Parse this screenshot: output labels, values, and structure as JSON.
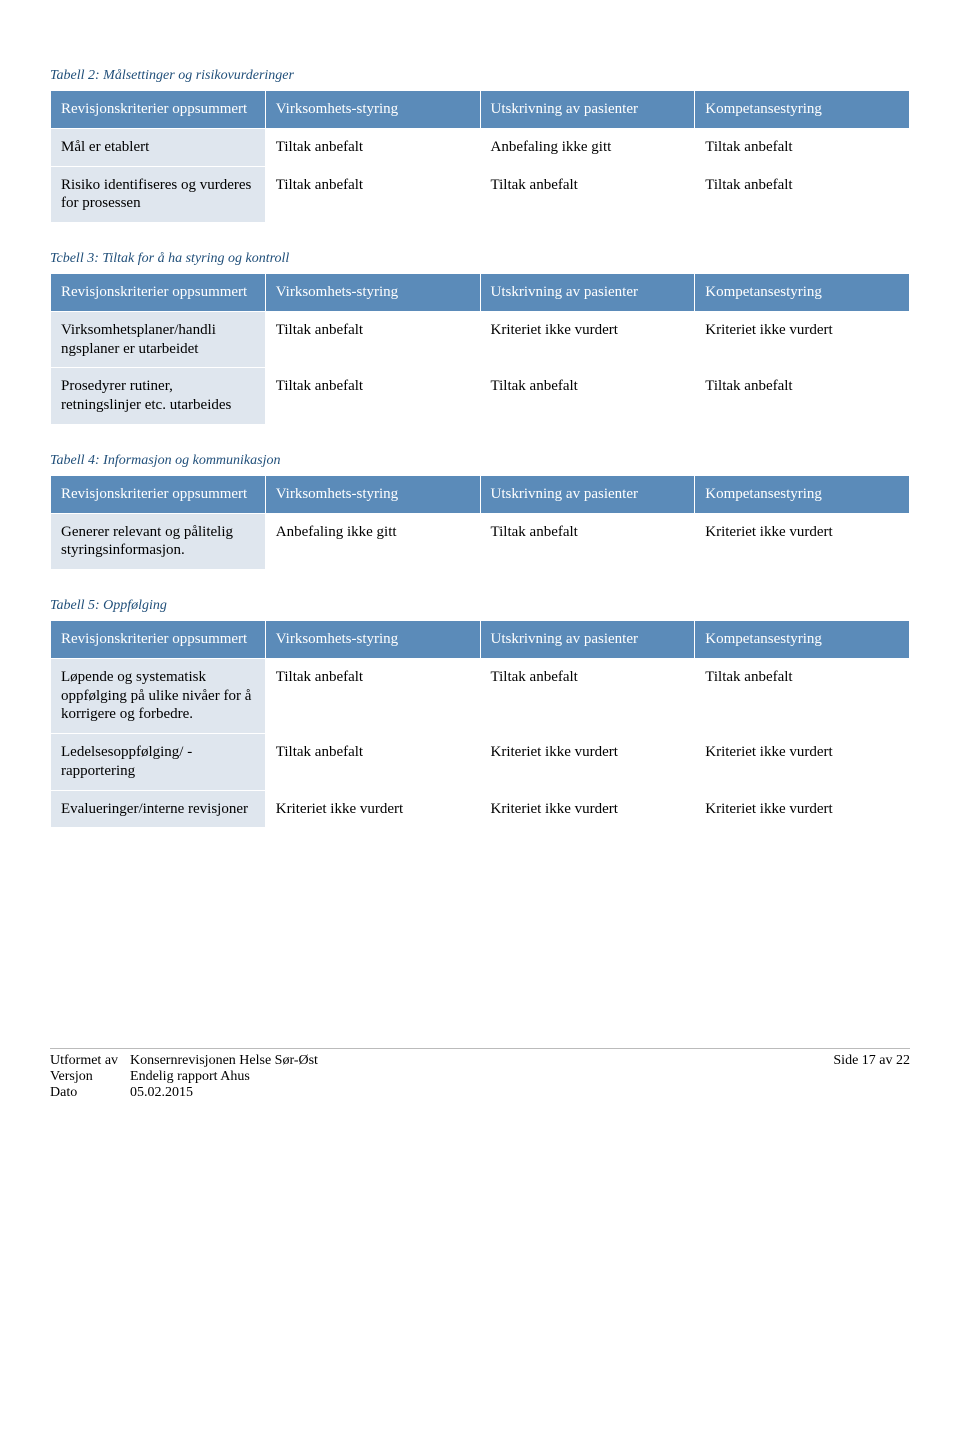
{
  "colors": {
    "header_bg": "#5b8bb9",
    "header_text": "#ffffff",
    "rowlabel_bg": "#dfe6ee",
    "caption_color": "#1f4e79",
    "cell_border": "#ffffff"
  },
  "table2": {
    "caption": "Tabell 2: Målsettinger og risikovurderinger",
    "headers": [
      "Revisjonskriterier oppsummert",
      "Virksomhets-styring",
      "Utskrivning av pasienter",
      "Kompetansestyring"
    ],
    "rows": [
      [
        "Mål er etablert",
        "Tiltak anbefalt",
        "Anbefaling ikke gitt",
        "Tiltak anbefalt"
      ],
      [
        "Risiko identifiseres og vurderes for prosessen",
        "Tiltak anbefalt",
        "Tiltak anbefalt",
        "Tiltak anbefalt"
      ]
    ]
  },
  "table3": {
    "caption": "Tcbell 3: Tiltak for å ha styring og kontroll",
    "headers": [
      "Revisjonskriterier oppsummert",
      "Virksomhets-styring",
      "Utskrivning av pasienter",
      "Kompetansestyring"
    ],
    "rows": [
      [
        "Virksomhetsplaner/handli ngsplaner er utarbeidet",
        "Tiltak anbefalt",
        "Kriteriet ikke vurdert",
        "Kriteriet ikke vurdert"
      ],
      [
        "Prosedyrer rutiner, retningslinjer etc. utarbeides",
        "Tiltak anbefalt",
        "Tiltak anbefalt",
        "Tiltak anbefalt"
      ]
    ]
  },
  "table4": {
    "caption": "Tabell 4: Informasjon og kommunikasjon",
    "headers": [
      "Revisjonskriterier oppsummert",
      "Virksomhets-styring",
      "Utskrivning av pasienter",
      "Kompetansestyring"
    ],
    "rows": [
      [
        "Generer relevant og pålitelig styringsinformasjon.",
        "Anbefaling ikke gitt",
        "Tiltak anbefalt",
        "Kriteriet ikke vurdert"
      ]
    ]
  },
  "table5": {
    "caption": "Tabell 5: Oppfølging",
    "headers": [
      "Revisjonskriterier oppsummert",
      "Virksomhets-styring",
      "Utskrivning av pasienter",
      "Kompetansestyring"
    ],
    "rows": [
      [
        "Løpende og systematisk oppfølging på ulike nivåer for å korrigere og forbedre.",
        "Tiltak anbefalt",
        "Tiltak anbefalt",
        "Tiltak anbefalt"
      ],
      [
        "Ledelsesoppfølging/ -rapportering",
        "Tiltak anbefalt",
        "Kriteriet ikke vurdert",
        "Kriteriet ikke vurdert"
      ],
      [
        "Evalueringer/interne revisjoner",
        "Kriteriet ikke vurdert",
        "Kriteriet ikke vurdert",
        "Kriteriet ikke vurdert"
      ]
    ]
  },
  "footer": {
    "l1a": "Utformet av",
    "l1b": "Konsernrevisjonen Helse Sør-Øst",
    "l2a": "Versjon",
    "l2b": "Endelig rapport Ahus",
    "l3a": "Dato",
    "l3b": "05.02.2015",
    "page": "Side 17 av 22"
  }
}
